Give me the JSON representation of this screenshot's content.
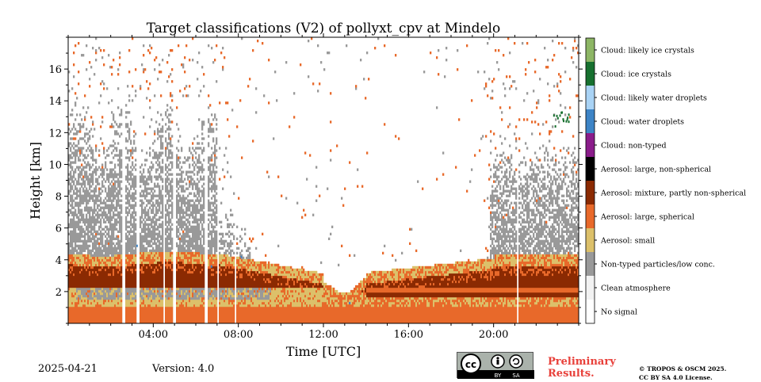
{
  "chart_data": {
    "type": "heatmap",
    "title": "Target classifications (V2) of pollyxt_cpv at Mindelo",
    "xlabel": "Time [UTC]",
    "ylabel": "Height [km]",
    "xlim_hours": [
      0,
      24
    ],
    "ylim_km": [
      0,
      18
    ],
    "xticks": [
      {
        "value": 4,
        "label": "04:00"
      },
      {
        "value": 8,
        "label": "08:00"
      },
      {
        "value": 12,
        "label": "12:00"
      },
      {
        "value": 16,
        "label": "16:00"
      },
      {
        "value": 20,
        "label": "20:00"
      }
    ],
    "yticks": [
      {
        "value": 2,
        "label": "2"
      },
      {
        "value": 4,
        "label": "4"
      },
      {
        "value": 6,
        "label": "6"
      },
      {
        "value": 8,
        "label": "8"
      },
      {
        "value": 10,
        "label": "10"
      },
      {
        "value": 12,
        "label": "12"
      },
      {
        "value": 14,
        "label": "14"
      },
      {
        "value": 16,
        "label": "16"
      }
    ],
    "classes": [
      {
        "label": "No signal",
        "color": "#ffffff"
      },
      {
        "label": "Clean atmosphere",
        "color": "#f2f2f2"
      },
      {
        "label": "Non-typed particles/low conc.",
        "color": "#999999"
      },
      {
        "label": "Aerosol: small",
        "color": "#dcc06a"
      },
      {
        "label": "Aerosol: large, spherical",
        "color": "#e8692a"
      },
      {
        "label": "Aerosol: mixture, partly non-spherical",
        "color": "#8b2a02"
      },
      {
        "label": "Aerosol: large, non-spherical",
        "color": "#000000"
      },
      {
        "label": "Cloud: non-typed",
        "color": "#8a1c8a"
      },
      {
        "label": "Cloud: water droplets",
        "color": "#3d84c6"
      },
      {
        "label": "Cloud: likely water droplets",
        "color": "#a9d3f5"
      },
      {
        "label": "Cloud: ice crystals",
        "color": "#17702f"
      },
      {
        "label": "Cloud: likely ice crystals",
        "color": "#8db665"
      }
    ],
    "layers": [
      {
        "class": "Aerosol: large, spherical",
        "height_km": [
          0,
          1.0
        ],
        "time_range_hours": [
          0,
          24
        ]
      },
      {
        "class": "Aerosol: small",
        "height_km": [
          1.0,
          2.2
        ],
        "time_range_hours": [
          0,
          12
        ]
      },
      {
        "class": "Aerosol: mixture, partly non-spherical",
        "height_km": [
          2.5,
          4.0
        ],
        "time_range_hours": [
          0,
          12
        ]
      },
      {
        "class": "Aerosol: mixture, partly non-spherical",
        "height_km": [
          1.5,
          3.8
        ],
        "time_range_hours": [
          14,
          24
        ]
      },
      {
        "class": "Non-typed particles/low conc.",
        "height_km": [
          4.5,
          12.0
        ],
        "time_range_hours": [
          0,
          7
        ]
      },
      {
        "class": "Non-typed particles/low conc.",
        "height_km": [
          4.0,
          10.0
        ],
        "time_range_hours": [
          20,
          24
        ]
      },
      {
        "class": "Cloud: ice crystals",
        "height_km": [
          12.0,
          13.5
        ],
        "time_range_hours": [
          22.8,
          23.6
        ]
      }
    ]
  },
  "footer": {
    "date": "2025-04-21",
    "version": "Version: 4.0",
    "preliminary_line1": "Preliminary",
    "preliminary_line2": "Results.",
    "copyright_line1": "© TROPOS & OSCM 2025.",
    "copyright_line2": "CC BY SA 4.0 License."
  },
  "cc_badge": {
    "by": "BY",
    "sa": "SA",
    "cc": "cc"
  }
}
